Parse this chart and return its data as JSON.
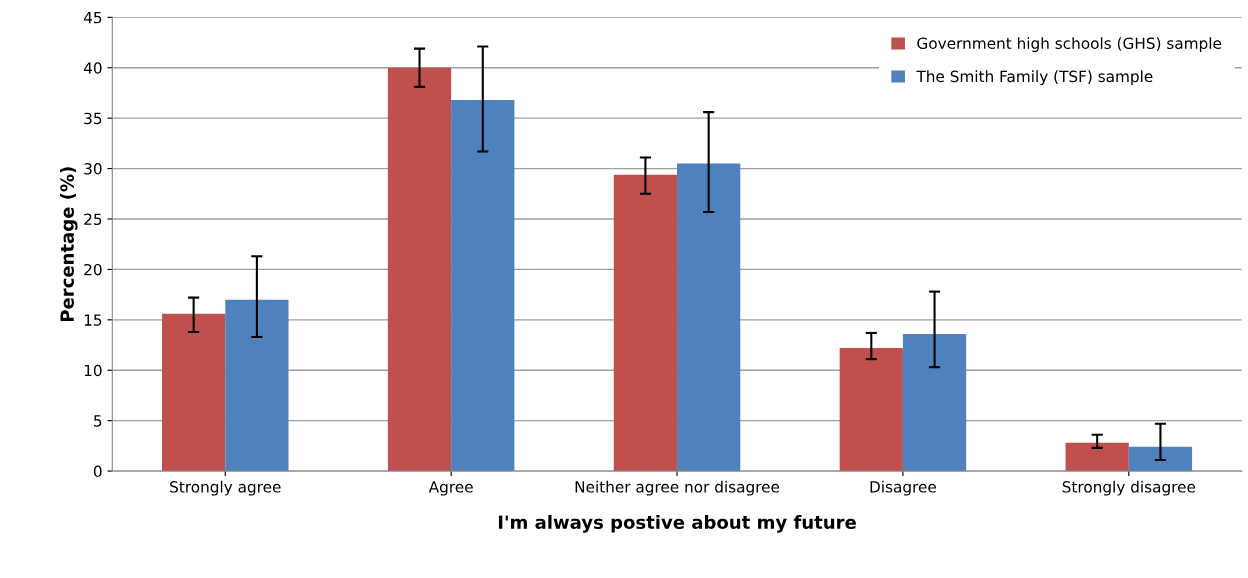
{
  "chart_data": {
    "type": "bar",
    "xlabel": "I'm always postive about my future",
    "ylabel": "Percentage (%)",
    "categories": [
      "Strongly agree",
      "Agree",
      "Neither agree nor disagree",
      "Disagree",
      "Strongly disagree"
    ],
    "series": [
      {
        "name": "Government high schools (GHS) sample",
        "color": "#c0504d",
        "values": [
          15.6,
          40.0,
          29.4,
          12.2,
          2.8
        ],
        "errors": [
          [
            13.8,
            17.2
          ],
          [
            38.1,
            41.9
          ],
          [
            27.5,
            31.1
          ],
          [
            11.1,
            13.7
          ],
          [
            2.3,
            3.6
          ]
        ]
      },
      {
        "name": "The Smith Family (TSF) sample",
        "color": "#4f81bd",
        "values": [
          17.0,
          36.8,
          30.5,
          13.6,
          2.4
        ],
        "errors": [
          [
            13.3,
            21.3
          ],
          [
            31.7,
            42.1
          ],
          [
            25.7,
            35.6
          ],
          [
            10.3,
            17.8
          ],
          [
            1.1,
            4.7
          ]
        ]
      }
    ],
    "ylim": [
      0,
      45
    ],
    "yticks": [
      0,
      5,
      10,
      15,
      20,
      25,
      30,
      35,
      40,
      45
    ],
    "grid": "y",
    "legend": "top right"
  }
}
